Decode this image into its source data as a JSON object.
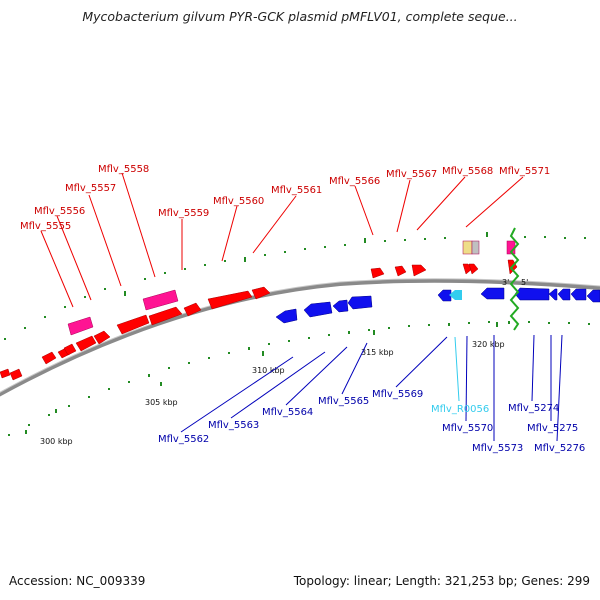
{
  "title": "Mycobacterium gilvum PYR-GCK plasmid pMFLV01, complete seque...",
  "footer": {
    "accession": "Accession: NC_009339",
    "summary": "Topology: linear; Length: 321,253 bp; Genes: 299"
  },
  "colors": {
    "forward_gene": "#ff0000",
    "reverse_gene": "#0000ee",
    "pseudo_gene": "#ff1493",
    "rna_gene": "#33ccee",
    "backbone": "#8a8a8a",
    "ticks": "#228b22",
    "upper_label": "#cc0000",
    "lower_label": "#0000aa"
  },
  "scale_labels": [
    "300 kbp",
    "305 kbp",
    "310 kbp",
    "315 kbp",
    "320 kbp"
  ],
  "end_markers": [
    "3'",
    "5'"
  ],
  "upper_labels": [
    "Mflv_5555",
    "Mflv_5556",
    "Mflv_5557",
    "Mflv_5558",
    "Mflv_5559",
    "Mflv_5560",
    "Mflv_5561",
    "Mflv_5566",
    "Mflv_5567",
    "Mflv_5568",
    "Mflv_5571"
  ],
  "lower_labels": [
    "Mflv_5562",
    "Mflv_5563",
    "Mflv_5564",
    "Mflv_5565",
    "Mflv_5569",
    "Mflv_R0056",
    "Mflv_5570",
    "Mflv_5573",
    "Mflv_5274",
    "Mflv_5275",
    "Mflv_5276"
  ]
}
